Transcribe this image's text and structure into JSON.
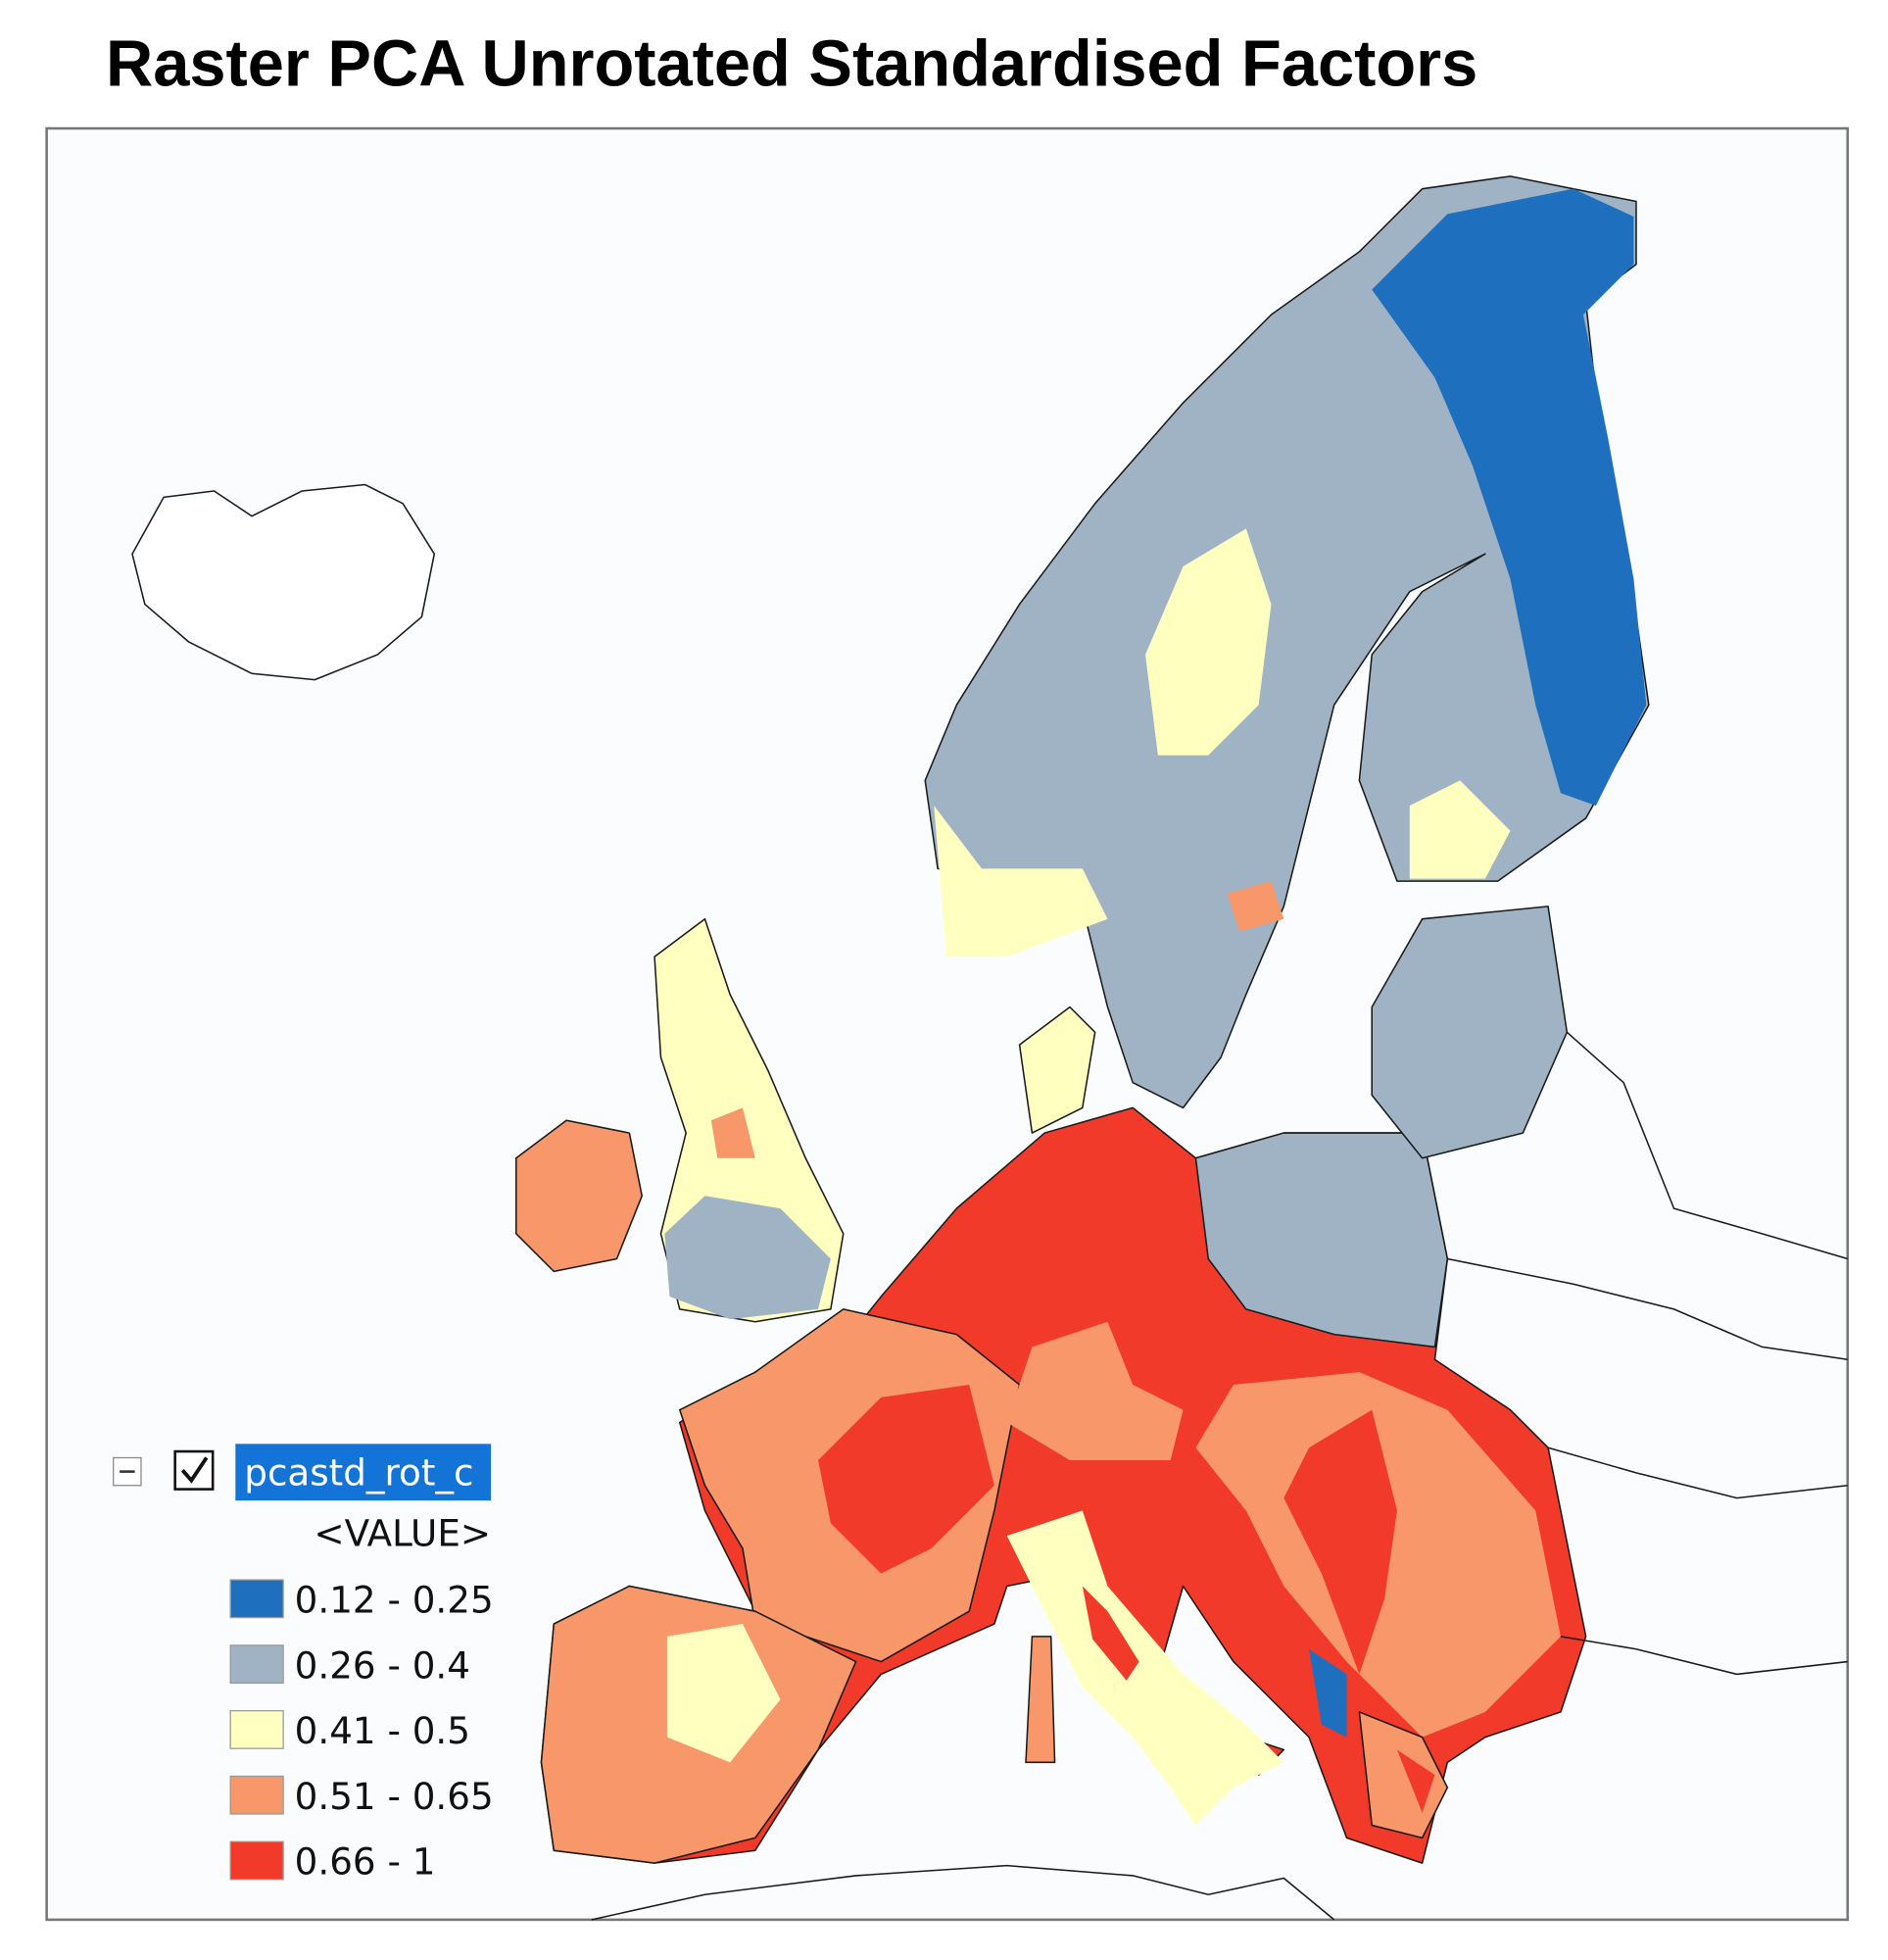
{
  "title": "Raster PCA Unrotated Standardised Factors",
  "legend": {
    "layer": "pcastd_rot_c",
    "field": "<VALUE>",
    "classes": [
      {
        "label": "0.12 - 0.25",
        "color": "#1f6fbf"
      },
      {
        "label": "0.26 - 0.4",
        "color": "#9fb3c5"
      },
      {
        "label": "0.41 - 0.5",
        "color": "#ffffc0"
      },
      {
        "label": "0.51 - 0.65",
        "color": "#f7976a"
      },
      {
        "label": "0.66 - 1",
        "color": "#f23a2a"
      }
    ]
  }
}
